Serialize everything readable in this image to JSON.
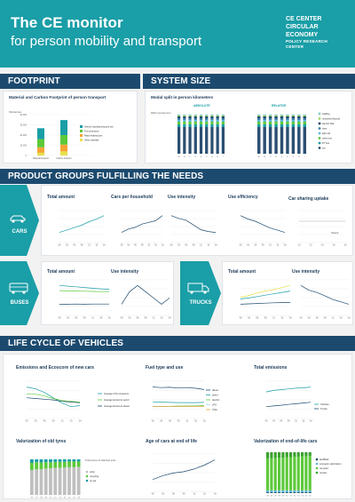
{
  "header": {
    "title": "The CE monitor",
    "subtitle": "for person mobility and transport",
    "brand": [
      "CE CENTER",
      "CIRCULAR",
      "ECONOMY"
    ],
    "brand_sub": [
      "POLICY RESEARCH",
      "CENTER"
    ]
  },
  "colors": {
    "teal": "#1a9ea7",
    "navy": "#1c4a6e",
    "green": "#5cc93a",
    "orange": "#f7a435",
    "yellow": "#e6e04a",
    "lightblue": "#9fd6ea",
    "darkblue": "#2b4f72",
    "grey": "#bfbfbf"
  },
  "sections": {
    "footprint": "FOOTPRINT",
    "system_size": "SYSTEM SIZE",
    "product_groups": "PRODUCT GROUPS FULFILLING THE NEEDS",
    "life_cycle": "LIFE CYCLE OF VEHICLES"
  },
  "panels": {
    "footprint_title": "Material and Carbon Footprint of person transport",
    "system_title": "Modal split in person kilometers",
    "cars_total": "Total amount",
    "cars_per_household": "Cars per household",
    "cars_use": "Use intensity",
    "cars_efficiency": "Use efficiency",
    "cars_sharing": "Car sharing uptake",
    "buses_total": "Total amount",
    "buses_use": "Use intensity",
    "trucks_total": "Total amount",
    "trucks_use": "Use intensity",
    "emissions": "Emissions and Ecoscore of new cars",
    "fuel": "Fuel type and use",
    "total_emissions": "Total emissions",
    "tyres": "Valorization of old tyres",
    "age": "Age of cars at end of life",
    "eol": "Valorization of end-of-life cars"
  },
  "groups": {
    "cars": "CARS",
    "buses": "BUSES",
    "trucks": "TRUCKS"
  },
  "icons": {
    "cars": "car-icon",
    "buses": "bus-icon",
    "trucks": "truck-icon"
  },
  "system_size": {
    "absolute_label": "ABSOLUTE",
    "relative_label": "RELATIVE"
  },
  "chart_data": [
    {
      "id": "footprint",
      "type": "bar",
      "categories": [
        "Material footprint",
        "Carbon footprint"
      ],
      "series": [
        {
          "name": "Other materials",
          "values": [
            2,
            3
          ]
        },
        {
          "name": "Road infrastructure",
          "values": [
            4,
            5
          ]
        },
        {
          "name": "Fuel production",
          "values": [
            6,
            7
          ]
        },
        {
          "name": "Vehicle manufacturing and use",
          "values": [
            8,
            11
          ]
        }
      ],
      "ylabel": "Kilotonnes",
      "yticks": [
        "40,000",
        "30,000",
        "20,000",
        "10,000",
        "0"
      ]
    },
    {
      "id": "modal_split",
      "type": "bar",
      "categories": [
        "A",
        "B",
        "C",
        "D",
        "E",
        "F",
        "G",
        "H",
        "I"
      ],
      "legend": [
        "walking",
        "motorised bicycle",
        "electric bike",
        "tram",
        "light rail",
        "other bus",
        "PT bus",
        "car"
      ],
      "ylabel": "billion person km"
    },
    {
      "id": "cars_total",
      "type": "line",
      "x": [
        "'00",
        "'03",
        "'06",
        "'09",
        "'12",
        "'15",
        "'18"
      ],
      "series": [
        {
          "values": [
            5.9,
            6.1,
            6.3,
            6.5,
            6.8,
            7.0,
            7.3
          ]
        }
      ]
    },
    {
      "id": "cars_per_household",
      "type": "line",
      "x": [
        "'00",
        "'03",
        "'06",
        "'09",
        "'12",
        "'15",
        "'18"
      ],
      "series": [
        {
          "values": [
            1.1,
            1.12,
            1.13,
            1.15,
            1.16,
            1.17,
            1.2
          ]
        }
      ]
    },
    {
      "id": "cars_use_intensity",
      "type": "line",
      "x": [
        "'00",
        "'03",
        "'06",
        "'09",
        "'12",
        "'15",
        "'18"
      ],
      "series": [
        {
          "values": [
            15500,
            15200,
            15000,
            14500,
            14000,
            13800,
            13700
          ]
        }
      ]
    },
    {
      "id": "cars_use_efficiency",
      "type": "line",
      "x": [
        "'00",
        "'03",
        "'06",
        "'09",
        "'12",
        "'15",
        "'18"
      ],
      "series": [
        {
          "values": [
            1.55,
            1.52,
            1.5,
            1.47,
            1.44,
            1.42,
            1.4
          ]
        }
      ]
    },
    {
      "id": "car_sharing",
      "type": "line",
      "x": [
        "'10",
        "'12",
        "'14",
        "'16",
        "'18"
      ],
      "series": [
        {
          "name": "Shared",
          "values": [
            0.0,
            0.0,
            0.0,
            0.0,
            0.0
          ]
        }
      ]
    },
    {
      "id": "buses_total",
      "type": "line",
      "x": [
        "'00",
        "'03",
        "'06",
        "'09",
        "'12",
        "'15",
        "'18"
      ],
      "series": [
        {
          "values": [
            15000,
            14600,
            14200,
            13800,
            13400,
            13000,
            12800
          ]
        },
        {
          "values": [
            12000,
            11800,
            11700,
            11600,
            11500,
            11400,
            11400
          ]
        },
        {
          "values": [
            4000,
            4000,
            4100,
            4000,
            4100,
            4100,
            4100
          ]
        }
      ]
    },
    {
      "id": "buses_use_intensity",
      "type": "line",
      "x": [
        "'00",
        "'03",
        "'06",
        "'09",
        "'12",
        "'15",
        "'18"
      ],
      "series": [
        {
          "values": [
            40000,
            41000,
            41500,
            41000,
            40500,
            40000,
            40500
          ]
        }
      ]
    },
    {
      "id": "trucks_total",
      "type": "line",
      "x": [
        "'00",
        "'03",
        "'06",
        "'09",
        "'12",
        "'15",
        "'18"
      ],
      "series": [
        {
          "values": [
            60000,
            65000,
            72000,
            78000,
            82000,
            88000,
            94000
          ]
        },
        {
          "values": [
            55000,
            58000,
            62000,
            66000,
            70000,
            74000,
            78000
          ]
        },
        {
          "values": [
            40000,
            41000,
            42000,
            43000,
            44000,
            44500,
            45000
          ]
        }
      ]
    },
    {
      "id": "trucks_use_intensity",
      "type": "line",
      "x": [
        "'00",
        "'03",
        "'06",
        "'09",
        "'12",
        "'15",
        "'18"
      ],
      "series": [
        {
          "values": [
            66000,
            65000,
            64500,
            63800,
            63000,
            62500,
            62000
          ]
        }
      ]
    },
    {
      "id": "emissions_new_cars",
      "type": "line",
      "x": [
        "'00",
        "'03",
        "'06",
        "'09",
        "'12",
        "'15",
        "'18"
      ],
      "series": [
        {
          "name": "Average CO2 emissions",
          "values": [
            180,
            175,
            165,
            150,
            135,
            125,
            128
          ]
        },
        {
          "name": "Average Ecoscore petrol",
          "values": [
            160,
            160,
            155,
            148,
            142,
            140,
            138
          ]
        },
        {
          "name": "Average Ecoscore diesel",
          "values": [
            150,
            148,
            146,
            144,
            140,
            138,
            136
          ]
        }
      ]
    },
    {
      "id": "fuel_type",
      "type": "line",
      "x": [
        "'00",
        "'03",
        "'06",
        "'09",
        "'12",
        "'15",
        "'18"
      ],
      "series": [
        {
          "name": "diesel",
          "values": [
            80,
            78,
            79,
            76,
            78,
            75,
            70
          ]
        },
        {
          "name": "petrol",
          "values": [
            20,
            19,
            18,
            17,
            17,
            17,
            18
          ]
        },
        {
          "name": "electric",
          "values": [
            2,
            2,
            2,
            3,
            3,
            4,
            5
          ]
        },
        {
          "name": "LPG",
          "values": [
            1,
            1,
            1,
            1,
            1,
            1,
            1
          ]
        },
        {
          "name": "CNG",
          "values": [
            0.5,
            0.5,
            0.5,
            0.5,
            0.5,
            0.5,
            0.5
          ]
        }
      ]
    },
    {
      "id": "total_emissions",
      "type": "line",
      "x": [
        "'00",
        "'03",
        "'06",
        "'09",
        "'12",
        "'15",
        "'18"
      ],
      "series": [
        {
          "name": "Vehicles",
          "values": [
            16.0,
            16.4,
            16.6,
            16.8,
            17.0,
            17.1,
            17.3
          ]
        },
        {
          "name": "Trucks",
          "values": [
            12.0,
            12.2,
            12.4,
            12.6,
            12.8,
            13.0,
            13.2
          ]
        }
      ]
    },
    {
      "id": "tyres",
      "type": "bar",
      "categories": [
        "'06",
        "'07",
        "'08",
        "'09",
        "'10",
        "'11",
        "'12",
        "'13",
        "'14",
        "'15",
        "'16"
      ],
      "series": [
        {
          "name": "other",
          "values": [
            70,
            72,
            72,
            74,
            75,
            76,
            76,
            77,
            78,
            78,
            79
          ]
        },
        {
          "name": "recycling",
          "values": [
            20,
            20,
            19,
            18,
            17,
            17,
            17,
            16,
            16,
            16,
            15
          ]
        },
        {
          "name": "re-use",
          "values": [
            10,
            8,
            9,
            8,
            8,
            7,
            7,
            7,
            6,
            6,
            6
          ]
        }
      ],
      "legend_title": "Total tonnes of valorized tyres"
    },
    {
      "id": "age_end_of_life",
      "type": "line",
      "x": [
        "'00",
        "'03",
        "'06",
        "'09",
        "'12",
        "'15",
        "'18"
      ],
      "series": [
        {
          "values": [
            12.5,
            12.8,
            13.0,
            13.1,
            13.3,
            13.6,
            14.0
          ]
        }
      ]
    },
    {
      "id": "eol_cars",
      "type": "bar",
      "categories": [
        "'05",
        "'06",
        "'07",
        "'08",
        "'09",
        "'10",
        "'11",
        "'12",
        "'13",
        "'14",
        "'15",
        "'16"
      ],
      "series": [
        {
          "name": "landfilled",
          "values": [
            2,
            2,
            2,
            2,
            2,
            2,
            2,
            2,
            2,
            2,
            2,
            2
          ]
        },
        {
          "name": "energetic valorization",
          "values": [
            5,
            5,
            5,
            5,
            5,
            5,
            5,
            5,
            5,
            5,
            5,
            5
          ]
        },
        {
          "name": "recycled",
          "values": [
            78,
            79,
            79,
            80,
            80,
            81,
            81,
            82,
            82,
            83,
            83,
            84
          ]
        },
        {
          "name": "reused",
          "values": [
            15,
            14,
            14,
            13,
            13,
            12,
            12,
            11,
            11,
            10,
            10,
            9
          ]
        }
      ]
    }
  ]
}
